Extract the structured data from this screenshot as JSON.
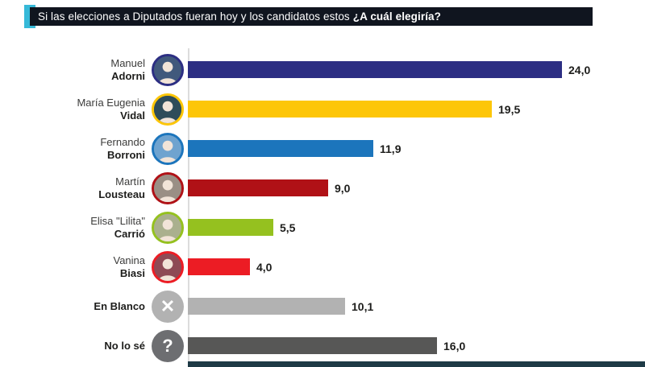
{
  "header": {
    "title_normal": "Si las elecciones a Diputados fueran hoy y los candidatos estos",
    "title_bold": "¿A cuál elegiría?",
    "bar_color": "#10151f",
    "accent_color": "#36b9d8",
    "text_color": "#ffffff"
  },
  "chart_data": {
    "type": "bar",
    "orientation": "horizontal",
    "title": "Si las elecciones a Diputados fueran hoy y los candidatos estos ¿A cuál elegiría?",
    "xlabel": "",
    "ylabel": "",
    "xlim": [
      0,
      25
    ],
    "grid": false,
    "decimal_style": "comma",
    "axis_color": "#dcdcdc",
    "footer_strip_color": "#1e3a46",
    "categories": [
      "Manuel Adorni",
      "María Eugenia Vidal",
      "Fernando Borroni",
      "Martín Lousteau",
      "Elisa \"Lilita\" Carrió",
      "Vanina Biasi",
      "En Blanco",
      "No lo sé"
    ],
    "values": [
      24.0,
      19.5,
      11.9,
      9.0,
      5.5,
      4.0,
      10.1,
      16.0
    ],
    "rows": [
      {
        "label_top": "Manuel",
        "label_bottom": "Adorni",
        "value": 24.0,
        "value_label": "24,0",
        "bar_color": "#2c2e83",
        "avatar_type": "person",
        "avatar_bg": "#41597c",
        "ring_color": "#2c2e83"
      },
      {
        "label_top": "María Eugenia",
        "label_bottom": "Vidal",
        "value": 19.5,
        "value_label": "19,5",
        "bar_color": "#fdc608",
        "avatar_type": "person",
        "avatar_bg": "#2e4c5a",
        "ring_color": "#fdc608"
      },
      {
        "label_top": "Fernando",
        "label_bottom": "Borroni",
        "value": 11.9,
        "value_label": "11,9",
        "bar_color": "#1c75bc",
        "avatar_type": "person",
        "avatar_bg": "#6fa3cf",
        "ring_color": "#1c75bc"
      },
      {
        "label_top": "Martín",
        "label_bottom": "Lousteau",
        "value": 9.0,
        "value_label": "9,0",
        "bar_color": "#b01116",
        "avatar_type": "person",
        "avatar_bg": "#9a8f85",
        "ring_color": "#b01116"
      },
      {
        "label_top": "Elisa \"Lilita\"",
        "label_bottom": "Carrió",
        "value": 5.5,
        "value_label": "5,5",
        "bar_color": "#95c11f",
        "avatar_type": "person",
        "avatar_bg": "#aab08e",
        "ring_color": "#95c11f"
      },
      {
        "label_top": "Vanina",
        "label_bottom": "Biasi",
        "value": 4.0,
        "value_label": "4,0",
        "bar_color": "#ec1c24",
        "avatar_type": "person",
        "avatar_bg": "#8e4a55",
        "ring_color": "#ec1c24"
      },
      {
        "label_top": "",
        "label_bottom": "En Blanco",
        "value": 10.1,
        "value_label": "10,1",
        "bar_color": "#b2b2b2",
        "avatar_type": "glyph",
        "avatar_bg": "#b2b2b2",
        "avatar_glyph": "✕",
        "ring_color": "#ffffff"
      },
      {
        "label_top": "",
        "label_bottom": "No lo sé",
        "value": 16.0,
        "value_label": "16,0",
        "bar_color": "#575756",
        "avatar_type": "glyph",
        "avatar_bg": "#6d6e71",
        "avatar_glyph": "?",
        "ring_color": "#ffffff"
      }
    ]
  }
}
